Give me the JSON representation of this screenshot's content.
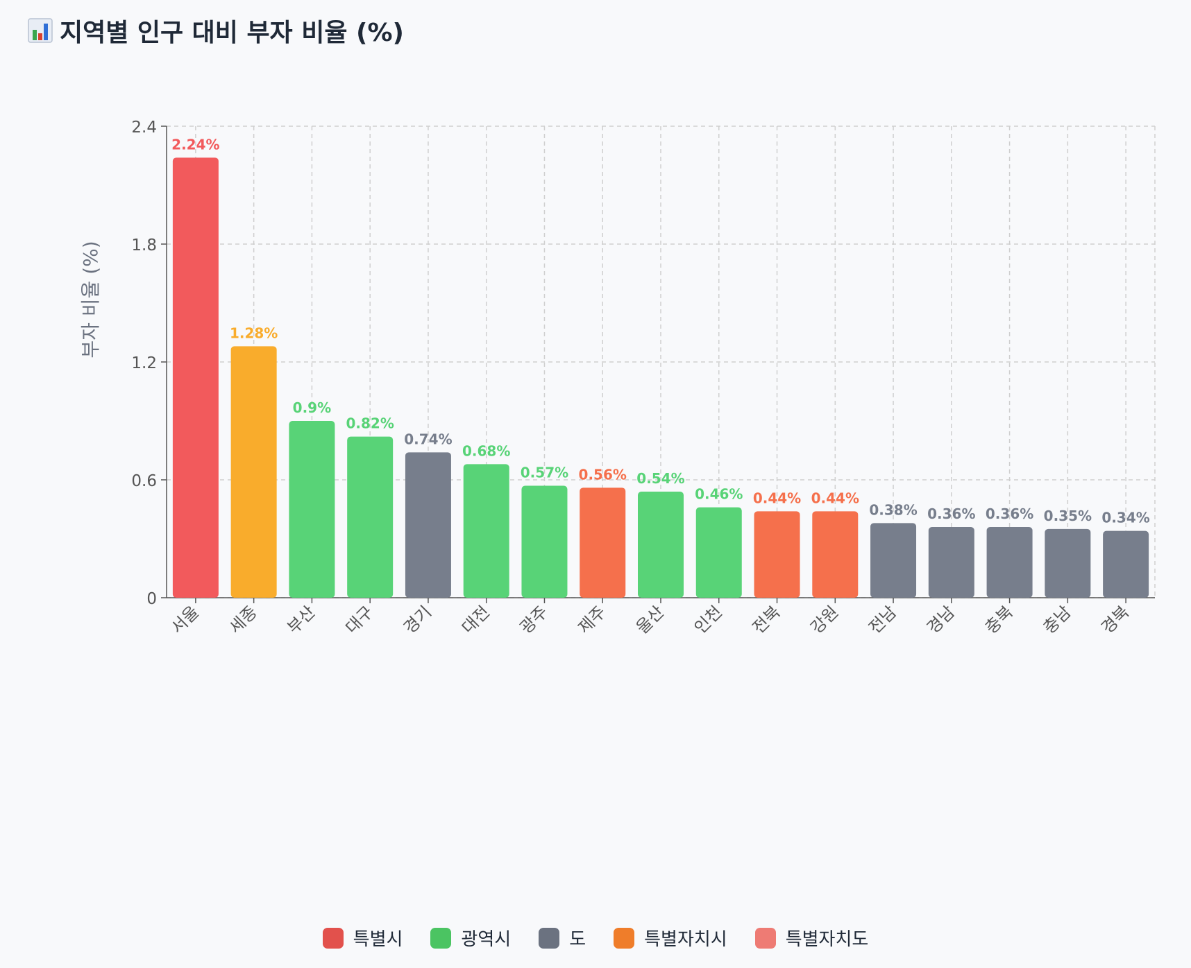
{
  "title": "지역별 인구 대비 부자 비율 (%)",
  "title_icon": "bar-chart-icon",
  "colors": {
    "특별시": "#f25a5c",
    "광역시": "#58d377",
    "도": "#777e8c",
    "특별자치시": "#f9ac2c",
    "특별자치도": "#f5704c"
  },
  "legend": [
    {
      "label": "특별시",
      "color": "#e2514c"
    },
    {
      "label": "광역시",
      "color": "#4bc462"
    },
    {
      "label": "도",
      "color": "#6b7280"
    },
    {
      "label": "특별자치시",
      "color": "#ef7d2a"
    },
    {
      "label": "특별자치도",
      "color": "#ee7b74"
    }
  ],
  "chart_data": {
    "type": "bar",
    "title": "지역별 인구 대비 부자 비율 (%)",
    "xlabel": "",
    "ylabel": "부자 비율 (%)",
    "ylim": [
      0,
      2.4
    ],
    "yticks": [
      "0",
      "0.6",
      "1.2",
      "1.8",
      "2.4"
    ],
    "grid": true,
    "legend_position": "bottom",
    "categories": [
      "서울",
      "세종",
      "부산",
      "대구",
      "경기",
      "대전",
      "광주",
      "제주",
      "울산",
      "인천",
      "전북",
      "강원",
      "전남",
      "경남",
      "충북",
      "충남",
      "경북"
    ],
    "values": [
      2.24,
      1.28,
      0.9,
      0.82,
      0.74,
      0.68,
      0.57,
      0.56,
      0.54,
      0.46,
      0.44,
      0.44,
      0.38,
      0.36,
      0.36,
      0.35,
      0.34
    ],
    "labels": [
      "2.24%",
      "1.28%",
      "0.9%",
      "0.82%",
      "0.74%",
      "0.68%",
      "0.57%",
      "0.56%",
      "0.54%",
      "0.46%",
      "0.44%",
      "0.44%",
      "0.38%",
      "0.36%",
      "0.36%",
      "0.35%",
      "0.34%"
    ],
    "groups": [
      "특별시",
      "특별자치시",
      "광역시",
      "광역시",
      "도",
      "광역시",
      "광역시",
      "특별자치도",
      "광역시",
      "광역시",
      "특별자치도",
      "특별자치도",
      "도",
      "도",
      "도",
      "도",
      "도"
    ]
  }
}
